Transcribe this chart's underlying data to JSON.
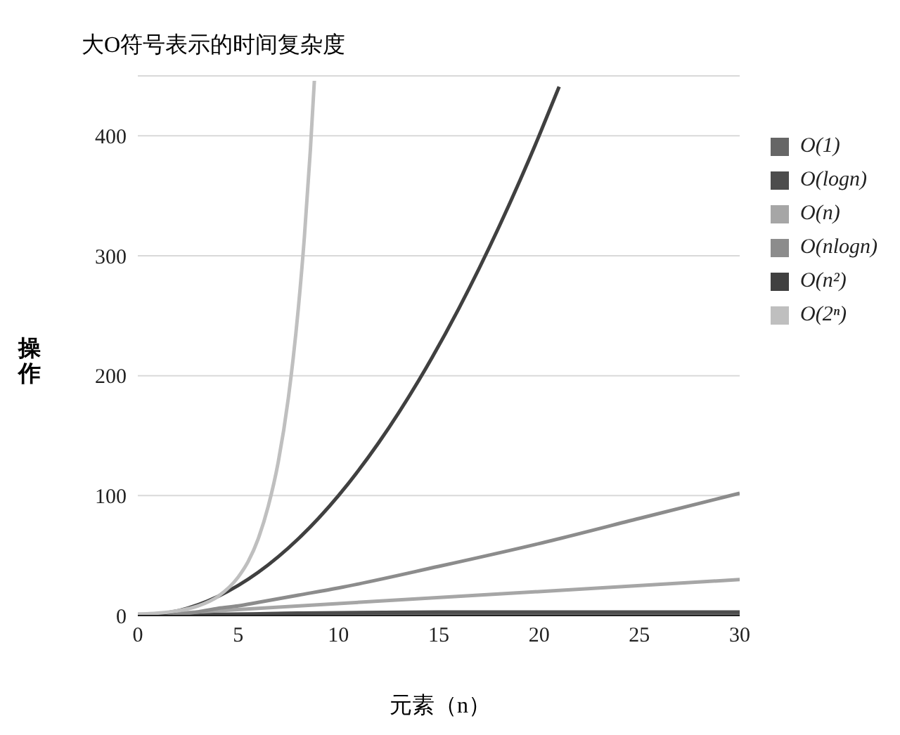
{
  "chart_data": {
    "type": "line",
    "title": "大O符号表示的时间复杂度",
    "xlabel": "元素（n）",
    "ylabel": "操作",
    "xlim": [
      0,
      30
    ],
    "xticks": [
      0,
      5,
      10,
      15,
      20,
      25,
      30
    ],
    "ylim": [
      0,
      450
    ],
    "yticks": [
      0,
      100,
      200,
      300,
      400
    ],
    "grid": "y",
    "legend": "top right",
    "marker": "none",
    "series": [
      {
        "name": "O(1)",
        "color": "#666666",
        "x": [
          0,
          30
        ],
        "values": [
          1,
          1
        ]
      },
      {
        "name": "O(logn)",
        "color": "#4d4d4d",
        "x": [
          1,
          2,
          4,
          8,
          15,
          30
        ],
        "values": [
          0,
          1,
          1,
          2,
          3,
          3
        ]
      },
      {
        "name": "O(n)",
        "color": "#a6a6a6",
        "x": [
          0,
          30
        ],
        "values": [
          0,
          30
        ]
      },
      {
        "name": "O(nlogn)",
        "color": "#8c8c8c",
        "x": [
          1,
          2,
          3,
          4,
          5,
          6,
          8,
          10,
          15,
          20,
          25,
          30
        ],
        "values": [
          0,
          1,
          3,
          6,
          8,
          11,
          17,
          23,
          41,
          60,
          81,
          102
        ]
      },
      {
        "name": "O(n²)",
        "color": "#404040",
        "x": [
          0,
          2,
          4,
          6,
          8,
          10,
          12,
          14,
          16,
          18,
          20,
          21
        ],
        "values": [
          0,
          4,
          16,
          36,
          64,
          100,
          144,
          196,
          256,
          324,
          400,
          441
        ]
      },
      {
        "name": "O(2ⁿ)",
        "color": "#bfbfbf",
        "x": [
          0,
          1,
          2,
          3,
          4,
          5,
          5.5,
          6,
          6.5,
          7,
          7.5,
          8,
          8.3,
          8.6,
          8.8
        ],
        "values": [
          1,
          2,
          4,
          8,
          16,
          32,
          45,
          64,
          91,
          128,
          181,
          256,
          315,
          388,
          446
        ]
      }
    ]
  }
}
